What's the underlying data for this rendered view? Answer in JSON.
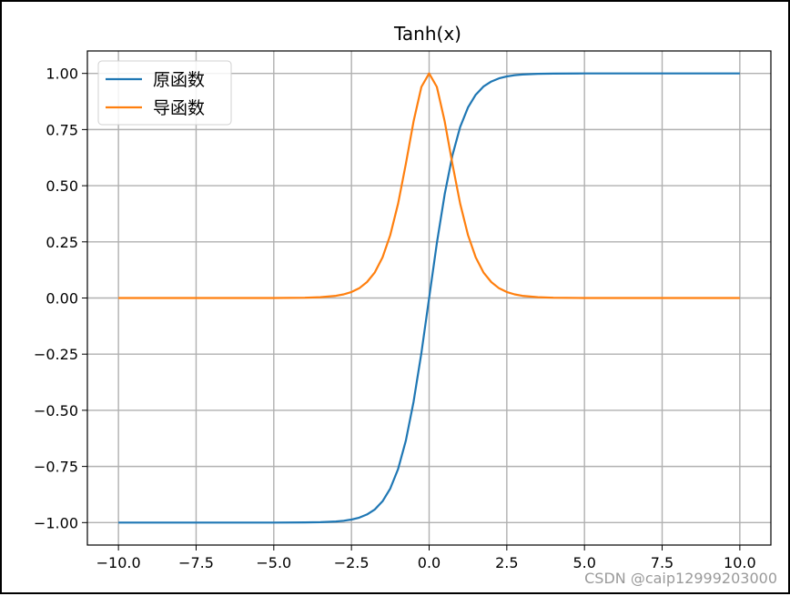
{
  "chart_data": {
    "type": "line",
    "title": "Tanh(x)",
    "xlabel": "",
    "ylabel": "",
    "xlim": [
      -11.0,
      11.0
    ],
    "ylim": [
      -1.1,
      1.1
    ],
    "grid": true,
    "legend_position": "top-left",
    "x_ticks": [
      -10.0,
      -7.5,
      -5.0,
      -2.5,
      0.0,
      2.5,
      5.0,
      7.5,
      10.0
    ],
    "x_tick_labels": [
      "−10.0",
      "−7.5",
      "−5.0",
      "−2.5",
      "0.0",
      "2.5",
      "5.0",
      "7.5",
      "10.0"
    ],
    "y_ticks": [
      -1.0,
      -0.75,
      -0.5,
      -0.25,
      0.0,
      0.25,
      0.5,
      0.75,
      1.0
    ],
    "y_tick_labels": [
      "−1.00",
      "−0.75",
      "−0.50",
      "−0.25",
      "0.00",
      "0.25",
      "0.50",
      "0.75",
      "1.00"
    ],
    "x": [
      -10.0,
      -9.0,
      -8.0,
      -7.0,
      -6.0,
      -5.0,
      -4.0,
      -3.5,
      -3.0,
      -2.75,
      -2.5,
      -2.25,
      -2.0,
      -1.75,
      -1.5,
      -1.25,
      -1.0,
      -0.75,
      -0.5,
      -0.25,
      0.0,
      0.25,
      0.5,
      0.75,
      1.0,
      1.25,
      1.5,
      1.75,
      2.0,
      2.25,
      2.5,
      2.75,
      3.0,
      3.5,
      4.0,
      5.0,
      6.0,
      7.0,
      8.0,
      9.0,
      10.0
    ],
    "series": [
      {
        "name": "原函数",
        "color": "#1f77b4",
        "values": [
          -1.0,
          -1.0,
          -1.0,
          -1.0,
          -1.0,
          -0.9999,
          -0.9993,
          -0.9982,
          -0.9951,
          -0.9918,
          -0.9866,
          -0.978,
          -0.964,
          -0.9414,
          -0.9051,
          -0.8483,
          -0.7616,
          -0.6351,
          -0.4621,
          -0.2449,
          0.0,
          0.2449,
          0.4621,
          0.6351,
          0.7616,
          0.8483,
          0.9051,
          0.9414,
          0.964,
          0.978,
          0.9866,
          0.9918,
          0.9951,
          0.9982,
          0.9993,
          0.9999,
          1.0,
          1.0,
          1.0,
          1.0,
          1.0
        ]
      },
      {
        "name": "导函数",
        "color": "#ff7f0e",
        "values": [
          0.0,
          0.0,
          0.0,
          0.0,
          0.0,
          0.0002,
          0.0013,
          0.0036,
          0.0099,
          0.0163,
          0.0266,
          0.0435,
          0.0707,
          0.1138,
          0.1807,
          0.2804,
          0.42,
          0.5966,
          0.7864,
          0.94,
          1.0,
          0.94,
          0.7864,
          0.5966,
          0.42,
          0.2804,
          0.1807,
          0.1138,
          0.0707,
          0.0435,
          0.0266,
          0.0163,
          0.0099,
          0.0036,
          0.0013,
          0.0002,
          0.0,
          0.0,
          0.0,
          0.0,
          0.0
        ]
      }
    ]
  },
  "watermark": "CSDN @caip12999203000"
}
